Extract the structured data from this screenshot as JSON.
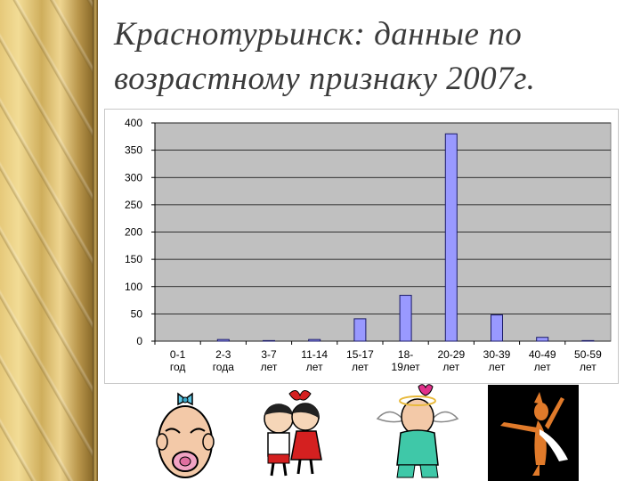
{
  "slide": {
    "title_line1": "Краснотурьинск: данные по",
    "title_line2": "возрастному признаку 2007г."
  },
  "colors": {
    "bar": "#9999ff",
    "bar_stroke": "#1a1a66",
    "plot_bg": "#c0c0c0",
    "title": "#3b3b3b",
    "border_gold": "#d9bd6e"
  },
  "chart_data": {
    "type": "bar",
    "categories": [
      [
        "0-1",
        "год"
      ],
      [
        "2-3",
        "года"
      ],
      [
        "3-7",
        "лет"
      ],
      [
        "11-14",
        "лет"
      ],
      [
        "15-17",
        "лет"
      ],
      [
        "18-",
        "19лет"
      ],
      [
        "20-29",
        "лет"
      ],
      [
        "30-39",
        "лет"
      ],
      [
        "40-49",
        "лет"
      ],
      [
        "50-59",
        "лет"
      ]
    ],
    "values": [
      0,
      3,
      1,
      3,
      41,
      84,
      380,
      48,
      7,
      1
    ],
    "ylim": [
      0,
      400
    ],
    "yticks": [
      0,
      50,
      100,
      150,
      200,
      250,
      300,
      350,
      400
    ],
    "grid": "horizontal",
    "legend": "none"
  },
  "images": {
    "icons": [
      "baby-pacifier-icon",
      "kissing-children-icon",
      "cupid-man-with-hearts-icon",
      "dancing-fox-on-black-icon"
    ]
  }
}
